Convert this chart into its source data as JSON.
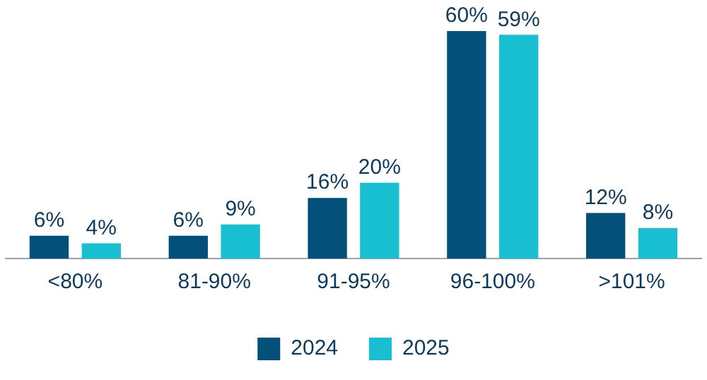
{
  "chart_data": {
    "type": "bar",
    "categories": [
      "<80%",
      "81-90%",
      "91-95%",
      "96-100%",
      ">101%"
    ],
    "series": [
      {
        "name": "2024",
        "color": "#03507a",
        "values": [
          6,
          6,
          16,
          60,
          12
        ],
        "value_labels": [
          "6%",
          "6%",
          "16%",
          "60%",
          "12%"
        ]
      },
      {
        "name": "2025",
        "color": "#17bfd0",
        "values": [
          4,
          9,
          20,
          59,
          8
        ],
        "value_labels": [
          "4%",
          "9%",
          "20%",
          "59%",
          "8%"
        ]
      }
    ],
    "legend": "bottom",
    "grid": false
  }
}
